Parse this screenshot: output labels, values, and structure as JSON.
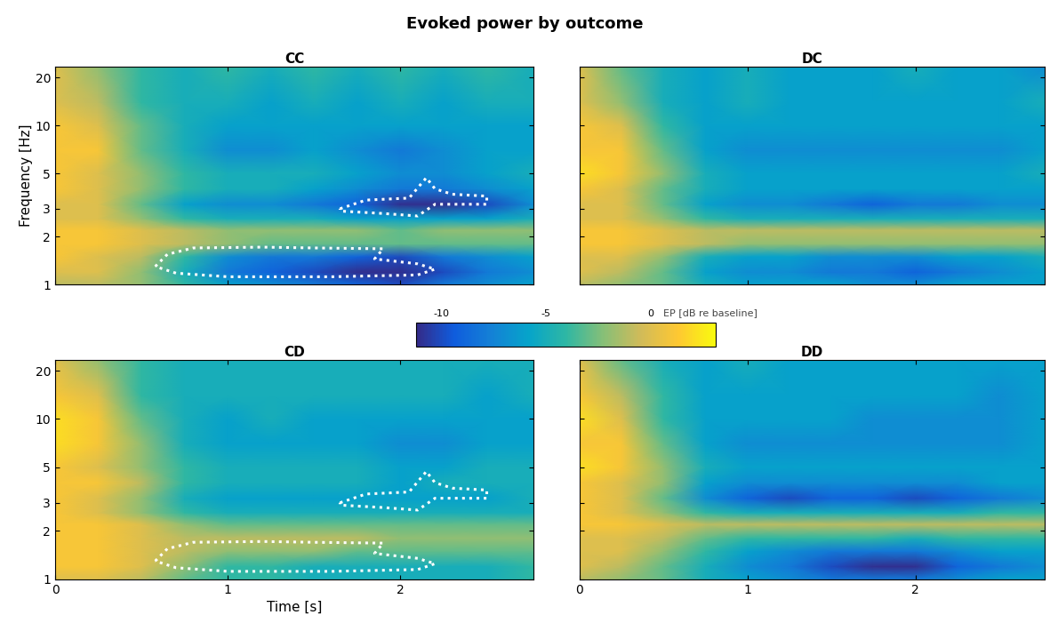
{
  "title": "Evoked power by outcome",
  "colorbar": {
    "label": "EP [dB re baseline]",
    "lim": [
      -11.2,
      3.1
    ],
    "ticks": [
      -10,
      -5,
      0
    ]
  },
  "chart_data": [
    {
      "type": "heatmap",
      "title": "CC",
      "ylabel": "Frequency [Hz]",
      "tick_labels": "y",
      "log": "y",
      "xlim": [
        0,
        2.77
      ],
      "ylim": [
        1,
        23.4
      ],
      "xticks": [
        0,
        1,
        2
      ],
      "yticks": [
        1,
        2,
        3,
        5,
        10,
        20
      ],
      "x": [
        0,
        0.25,
        0.5,
        0.75,
        1.0,
        1.25,
        1.5,
        1.75,
        2.0,
        2.25,
        2.5,
        2.77
      ],
      "y": [
        1.0,
        1.2,
        1.5,
        1.8,
        2.2,
        2.6,
        3.2,
        4,
        5,
        7,
        10,
        14,
        23.4
      ],
      "cells": [
        [
          -1,
          -1,
          -2,
          -4,
          -6,
          -7,
          -8,
          -9,
          -10,
          -8,
          -7,
          -6
        ],
        [
          0,
          0,
          -2,
          -5,
          -8,
          -9,
          -10,
          -11,
          -11,
          -10,
          -8,
          -7
        ],
        [
          1,
          0,
          -1,
          -4,
          -7,
          -8,
          -8,
          -9,
          -10,
          -8,
          -7,
          -6
        ],
        [
          1,
          1,
          0,
          -1,
          -2,
          -3,
          -3,
          -3,
          -3,
          -3,
          -3,
          -3
        ],
        [
          1,
          1,
          0,
          -1,
          -2,
          -2,
          -2,
          -2,
          -3,
          -2,
          -2,
          -2
        ],
        [
          0,
          0,
          -2,
          -4,
          -5,
          -5,
          -5,
          -6,
          -6,
          -6,
          -6,
          -5
        ],
        [
          0,
          0,
          -3,
          -6,
          -7,
          -7,
          -8,
          -9,
          -11,
          -11,
          -10,
          -7
        ],
        [
          1,
          0,
          -2,
          -4,
          -5,
          -5,
          -6,
          -7,
          -8,
          -8,
          -7,
          -6
        ],
        [
          1,
          0,
          -2,
          -4,
          -5,
          -5,
          -5,
          -6,
          -7,
          -7,
          -6,
          -5
        ],
        [
          1,
          1,
          -3,
          -5,
          -7,
          -7,
          -6,
          -7,
          -8,
          -7,
          -6,
          -6
        ],
        [
          1,
          0,
          -3,
          -5,
          -6,
          -6,
          -6,
          -6,
          -6,
          -6,
          -6,
          -6
        ],
        [
          0,
          -1,
          -4,
          -5,
          -5,
          -6,
          -5,
          -6,
          -5,
          -6,
          -5,
          -5
        ],
        [
          0,
          -2,
          -4,
          -5,
          -4,
          -5,
          -4,
          -5,
          -4,
          -5,
          -4,
          -5
        ]
      ],
      "clusters": [
        [
          [
            0.58,
            1.3
          ],
          [
            0.65,
            1.55
          ],
          [
            0.8,
            1.7
          ],
          [
            1.2,
            1.72
          ],
          [
            1.5,
            1.7
          ],
          [
            1.9,
            1.68
          ],
          [
            1.85,
            1.45
          ],
          [
            2.1,
            1.35
          ],
          [
            2.2,
            1.25
          ],
          [
            2.1,
            1.15
          ],
          [
            1.6,
            1.12
          ],
          [
            1.0,
            1.12
          ],
          [
            0.7,
            1.18
          ],
          [
            0.58,
            1.3
          ]
        ],
        [
          [
            1.65,
            3.0
          ],
          [
            1.8,
            3.4
          ],
          [
            2.05,
            3.5
          ],
          [
            2.15,
            4.7
          ],
          [
            2.2,
            4.0
          ],
          [
            2.3,
            3.7
          ],
          [
            2.5,
            3.6
          ],
          [
            2.5,
            3.2
          ],
          [
            2.2,
            3.2
          ],
          [
            2.1,
            2.7
          ],
          [
            1.9,
            2.8
          ],
          [
            1.65,
            2.9
          ],
          [
            1.65,
            3.0
          ]
        ]
      ]
    },
    {
      "type": "heatmap",
      "title": "DC",
      "tick_labels": false,
      "log": "y",
      "xlim": [
        0,
        2.77
      ],
      "ylim": [
        1,
        23.4
      ],
      "xticks": [
        0,
        1,
        2
      ],
      "yticks": [
        1,
        2,
        3,
        5,
        10,
        20
      ],
      "x": [
        0,
        0.25,
        0.5,
        0.75,
        1.0,
        1.25,
        1.5,
        1.75,
        2.0,
        2.25,
        2.5,
        2.77
      ],
      "y": [
        1.0,
        1.2,
        1.5,
        1.8,
        2.2,
        2.6,
        3.2,
        4,
        5,
        7,
        10,
        14,
        23.4
      ],
      "cells": [
        [
          -1,
          -2,
          -3,
          -5,
          -6,
          -6,
          -6,
          -7,
          -7,
          -6,
          -6,
          -6
        ],
        [
          0,
          -1,
          -3,
          -6,
          -7,
          -7,
          -8,
          -8,
          -9,
          -8,
          -7,
          -6
        ],
        [
          0,
          0,
          -2,
          -5,
          -6,
          -6,
          -7,
          -7,
          -7,
          -6,
          -6,
          -5
        ],
        [
          1,
          1,
          0,
          -1,
          -2,
          -2,
          -2,
          -2,
          -2,
          -2,
          -2,
          -2
        ],
        [
          1,
          1,
          0,
          -1,
          -1,
          -1,
          -1,
          -1,
          -1,
          -1,
          -1,
          -1
        ],
        [
          0,
          0,
          -2,
          -4,
          -5,
          -5,
          -5,
          -5,
          -5,
          -5,
          -5,
          -5
        ],
        [
          0,
          0,
          -3,
          -6,
          -7,
          -7,
          -8,
          -9,
          -8,
          -8,
          -7,
          -7
        ],
        [
          1,
          0,
          -3,
          -5,
          -6,
          -6,
          -6,
          -6,
          -6,
          -6,
          -6,
          -6
        ],
        [
          2,
          1,
          -2,
          -5,
          -6,
          -6,
          -6,
          -6,
          -6,
          -6,
          -6,
          -5
        ],
        [
          1,
          1,
          -3,
          -6,
          -7,
          -7,
          -7,
          -7,
          -7,
          -7,
          -7,
          -6
        ],
        [
          1,
          0,
          -4,
          -6,
          -6,
          -6,
          -6,
          -6,
          -6,
          -6,
          -6,
          -6
        ],
        [
          0,
          -2,
          -5,
          -6,
          -5,
          -6,
          -6,
          -6,
          -6,
          -6,
          -6,
          -5
        ],
        [
          0,
          -3,
          -5,
          -6,
          -5,
          -6,
          -6,
          -6,
          -5,
          -6,
          -6,
          -7
        ]
      ],
      "clusters": []
    },
    {
      "type": "heatmap",
      "title": "CD",
      "xlabel": "Time [s]",
      "tick_labels": true,
      "log": "y",
      "xlim": [
        0,
        2.77
      ],
      "ylim": [
        1,
        23.4
      ],
      "xticks": [
        0,
        1,
        2
      ],
      "yticks": [
        1,
        2,
        3,
        5,
        10,
        20
      ],
      "x": [
        0,
        0.25,
        0.5,
        0.75,
        1.0,
        1.25,
        1.5,
        1.75,
        2.0,
        2.25,
        2.5,
        2.77
      ],
      "y": [
        1.0,
        1.2,
        1.5,
        1.8,
        2.2,
        2.6,
        3.2,
        4,
        5,
        7,
        10,
        14,
        23.4
      ],
      "cells": [
        [
          0,
          0,
          -1,
          -3,
          -4,
          -4,
          -5,
          -5,
          -5,
          -5,
          -5,
          -4
        ],
        [
          1,
          1,
          0,
          -2,
          -4,
          -4,
          -5,
          -5,
          -5,
          -5,
          -5,
          -4
        ],
        [
          1,
          1,
          0,
          -1,
          -2,
          -2,
          -2,
          -3,
          -3,
          -3,
          -3,
          -3
        ],
        [
          1,
          1,
          0,
          -1,
          -1,
          -1,
          -1,
          -1,
          -2,
          -2,
          -2,
          -2
        ],
        [
          1,
          1,
          0,
          -2,
          -3,
          -3,
          -3,
          -3,
          -3,
          -3,
          -3,
          -3
        ],
        [
          1,
          0,
          -2,
          -4,
          -5,
          -5,
          -5,
          -5,
          -5,
          -5,
          -5,
          -5
        ],
        [
          1,
          0,
          -2,
          -5,
          -6,
          -6,
          -6,
          -6,
          -6,
          -6,
          -6,
          -5
        ],
        [
          1,
          1,
          -1,
          -4,
          -5,
          -5,
          -5,
          -5,
          -6,
          -5,
          -5,
          -5
        ],
        [
          1,
          0,
          -2,
          -4,
          -5,
          -5,
          -5,
          -5,
          -6,
          -6,
          -5,
          -5
        ],
        [
          2,
          1,
          -2,
          -5,
          -6,
          -6,
          -6,
          -6,
          -7,
          -7,
          -6,
          -6
        ],
        [
          2,
          1,
          -3,
          -5,
          -6,
          -5,
          -6,
          -6,
          -6,
          -6,
          -6,
          -6
        ],
        [
          1,
          0,
          -4,
          -5,
          -5,
          -5,
          -5,
          -5,
          -5,
          -5,
          -6,
          -5
        ],
        [
          0,
          -2,
          -4,
          -5,
          -5,
          -5,
          -5,
          -5,
          -5,
          -5,
          -5,
          -5
        ]
      ],
      "clusters": [
        [
          [
            0.58,
            1.3
          ],
          [
            0.65,
            1.55
          ],
          [
            0.8,
            1.7
          ],
          [
            1.2,
            1.72
          ],
          [
            1.5,
            1.7
          ],
          [
            1.9,
            1.68
          ],
          [
            1.85,
            1.45
          ],
          [
            2.1,
            1.35
          ],
          [
            2.2,
            1.25
          ],
          [
            2.1,
            1.15
          ],
          [
            1.6,
            1.12
          ],
          [
            1.0,
            1.12
          ],
          [
            0.7,
            1.18
          ],
          [
            0.58,
            1.3
          ]
        ],
        [
          [
            1.65,
            3.0
          ],
          [
            1.8,
            3.4
          ],
          [
            2.05,
            3.5
          ],
          [
            2.15,
            4.7
          ],
          [
            2.2,
            4.0
          ],
          [
            2.3,
            3.7
          ],
          [
            2.5,
            3.6
          ],
          [
            2.5,
            3.2
          ],
          [
            2.2,
            3.2
          ],
          [
            2.1,
            2.7
          ],
          [
            1.9,
            2.8
          ],
          [
            1.65,
            2.9
          ],
          [
            1.65,
            3.0
          ]
        ]
      ]
    },
    {
      "type": "heatmap",
      "title": "DD",
      "tick_labels": "x",
      "log": "y",
      "xlim": [
        0,
        2.77
      ],
      "ylim": [
        1,
        23.4
      ],
      "xticks": [
        0,
        1,
        2
      ],
      "yticks": [
        1,
        2,
        3,
        5,
        10,
        20
      ],
      "x": [
        0,
        0.25,
        0.5,
        0.75,
        1.0,
        1.25,
        1.5,
        1.75,
        2.0,
        2.25,
        2.5,
        2.77
      ],
      "y": [
        1.0,
        1.2,
        1.5,
        1.8,
        2.2,
        2.6,
        3.2,
        4,
        5,
        7,
        10,
        14,
        23.4
      ],
      "cells": [
        [
          -1,
          -2,
          -3,
          -5,
          -6,
          -7,
          -8,
          -8,
          -8,
          -7,
          -6,
          -6
        ],
        [
          0,
          -1,
          -3,
          -5,
          -7,
          -8,
          -10,
          -11,
          -11,
          -9,
          -8,
          -7
        ],
        [
          0,
          0,
          -2,
          -4,
          -6,
          -7,
          -8,
          -8,
          -8,
          -7,
          -6,
          -6
        ],
        [
          0,
          0,
          -1,
          -3,
          -4,
          -4,
          -4,
          -4,
          -5,
          -4,
          -4,
          -4
        ],
        [
          1,
          1,
          0,
          -1,
          -1,
          -1,
          -1,
          -1,
          -1,
          -1,
          -1,
          -1
        ],
        [
          1,
          0,
          -2,
          -4,
          -5,
          -5,
          -5,
          -5,
          -5,
          -5,
          -4,
          -4
        ],
        [
          1,
          0,
          -3,
          -7,
          -9,
          -10,
          -9,
          -9,
          -10,
          -9,
          -8,
          -7
        ],
        [
          1,
          0,
          -2,
          -6,
          -7,
          -7,
          -7,
          -7,
          -7,
          -7,
          -6,
          -6
        ],
        [
          2,
          1,
          -2,
          -5,
          -6,
          -6,
          -6,
          -6,
          -6,
          -6,
          -6,
          -6
        ],
        [
          1,
          1,
          -3,
          -6,
          -7,
          -7,
          -7,
          -7,
          -7,
          -7,
          -7,
          -6
        ],
        [
          2,
          0,
          -4,
          -6,
          -6,
          -6,
          -6,
          -7,
          -7,
          -7,
          -7,
          -6
        ],
        [
          1,
          -1,
          -4,
          -6,
          -6,
          -6,
          -6,
          -6,
          -6,
          -6,
          -7,
          -6
        ],
        [
          0,
          -3,
          -5,
          -6,
          -5,
          -6,
          -6,
          -6,
          -6,
          -6,
          -6,
          -6
        ]
      ],
      "clusters": []
    }
  ]
}
